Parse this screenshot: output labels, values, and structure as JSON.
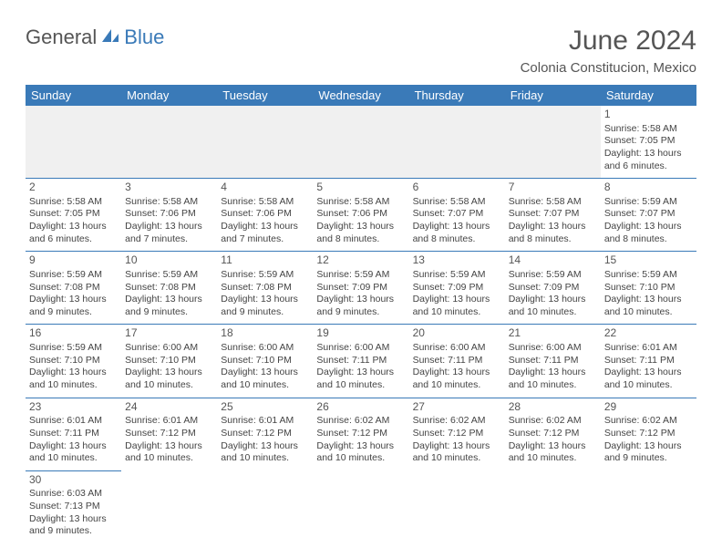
{
  "logo": {
    "general": "General",
    "blue": "Blue"
  },
  "title": "June 2024",
  "location": "Colonia Constitucion, Mexico",
  "weekdays": [
    "Sunday",
    "Monday",
    "Tuesday",
    "Wednesday",
    "Thursday",
    "Friday",
    "Saturday"
  ],
  "colors": {
    "header_bg": "#3a7ab8",
    "header_text": "#ffffff",
    "border": "#3a7ab8",
    "empty_bg": "#f0f0f0",
    "text": "#444444"
  },
  "weeks": [
    [
      null,
      null,
      null,
      null,
      null,
      null,
      {
        "day": "1",
        "sunrise": "Sunrise: 5:58 AM",
        "sunset": "Sunset: 7:05 PM",
        "daylight1": "Daylight: 13 hours",
        "daylight2": "and 6 minutes."
      }
    ],
    [
      {
        "day": "2",
        "sunrise": "Sunrise: 5:58 AM",
        "sunset": "Sunset: 7:05 PM",
        "daylight1": "Daylight: 13 hours",
        "daylight2": "and 6 minutes."
      },
      {
        "day": "3",
        "sunrise": "Sunrise: 5:58 AM",
        "sunset": "Sunset: 7:06 PM",
        "daylight1": "Daylight: 13 hours",
        "daylight2": "and 7 minutes."
      },
      {
        "day": "4",
        "sunrise": "Sunrise: 5:58 AM",
        "sunset": "Sunset: 7:06 PM",
        "daylight1": "Daylight: 13 hours",
        "daylight2": "and 7 minutes."
      },
      {
        "day": "5",
        "sunrise": "Sunrise: 5:58 AM",
        "sunset": "Sunset: 7:06 PM",
        "daylight1": "Daylight: 13 hours",
        "daylight2": "and 8 minutes."
      },
      {
        "day": "6",
        "sunrise": "Sunrise: 5:58 AM",
        "sunset": "Sunset: 7:07 PM",
        "daylight1": "Daylight: 13 hours",
        "daylight2": "and 8 minutes."
      },
      {
        "day": "7",
        "sunrise": "Sunrise: 5:58 AM",
        "sunset": "Sunset: 7:07 PM",
        "daylight1": "Daylight: 13 hours",
        "daylight2": "and 8 minutes."
      },
      {
        "day": "8",
        "sunrise": "Sunrise: 5:59 AM",
        "sunset": "Sunset: 7:07 PM",
        "daylight1": "Daylight: 13 hours",
        "daylight2": "and 8 minutes."
      }
    ],
    [
      {
        "day": "9",
        "sunrise": "Sunrise: 5:59 AM",
        "sunset": "Sunset: 7:08 PM",
        "daylight1": "Daylight: 13 hours",
        "daylight2": "and 9 minutes."
      },
      {
        "day": "10",
        "sunrise": "Sunrise: 5:59 AM",
        "sunset": "Sunset: 7:08 PM",
        "daylight1": "Daylight: 13 hours",
        "daylight2": "and 9 minutes."
      },
      {
        "day": "11",
        "sunrise": "Sunrise: 5:59 AM",
        "sunset": "Sunset: 7:08 PM",
        "daylight1": "Daylight: 13 hours",
        "daylight2": "and 9 minutes."
      },
      {
        "day": "12",
        "sunrise": "Sunrise: 5:59 AM",
        "sunset": "Sunset: 7:09 PM",
        "daylight1": "Daylight: 13 hours",
        "daylight2": "and 9 minutes."
      },
      {
        "day": "13",
        "sunrise": "Sunrise: 5:59 AM",
        "sunset": "Sunset: 7:09 PM",
        "daylight1": "Daylight: 13 hours",
        "daylight2": "and 10 minutes."
      },
      {
        "day": "14",
        "sunrise": "Sunrise: 5:59 AM",
        "sunset": "Sunset: 7:09 PM",
        "daylight1": "Daylight: 13 hours",
        "daylight2": "and 10 minutes."
      },
      {
        "day": "15",
        "sunrise": "Sunrise: 5:59 AM",
        "sunset": "Sunset: 7:10 PM",
        "daylight1": "Daylight: 13 hours",
        "daylight2": "and 10 minutes."
      }
    ],
    [
      {
        "day": "16",
        "sunrise": "Sunrise: 5:59 AM",
        "sunset": "Sunset: 7:10 PM",
        "daylight1": "Daylight: 13 hours",
        "daylight2": "and 10 minutes."
      },
      {
        "day": "17",
        "sunrise": "Sunrise: 6:00 AM",
        "sunset": "Sunset: 7:10 PM",
        "daylight1": "Daylight: 13 hours",
        "daylight2": "and 10 minutes."
      },
      {
        "day": "18",
        "sunrise": "Sunrise: 6:00 AM",
        "sunset": "Sunset: 7:10 PM",
        "daylight1": "Daylight: 13 hours",
        "daylight2": "and 10 minutes."
      },
      {
        "day": "19",
        "sunrise": "Sunrise: 6:00 AM",
        "sunset": "Sunset: 7:11 PM",
        "daylight1": "Daylight: 13 hours",
        "daylight2": "and 10 minutes."
      },
      {
        "day": "20",
        "sunrise": "Sunrise: 6:00 AM",
        "sunset": "Sunset: 7:11 PM",
        "daylight1": "Daylight: 13 hours",
        "daylight2": "and 10 minutes."
      },
      {
        "day": "21",
        "sunrise": "Sunrise: 6:00 AM",
        "sunset": "Sunset: 7:11 PM",
        "daylight1": "Daylight: 13 hours",
        "daylight2": "and 10 minutes."
      },
      {
        "day": "22",
        "sunrise": "Sunrise: 6:01 AM",
        "sunset": "Sunset: 7:11 PM",
        "daylight1": "Daylight: 13 hours",
        "daylight2": "and 10 minutes."
      }
    ],
    [
      {
        "day": "23",
        "sunrise": "Sunrise: 6:01 AM",
        "sunset": "Sunset: 7:11 PM",
        "daylight1": "Daylight: 13 hours",
        "daylight2": "and 10 minutes."
      },
      {
        "day": "24",
        "sunrise": "Sunrise: 6:01 AM",
        "sunset": "Sunset: 7:12 PM",
        "daylight1": "Daylight: 13 hours",
        "daylight2": "and 10 minutes."
      },
      {
        "day": "25",
        "sunrise": "Sunrise: 6:01 AM",
        "sunset": "Sunset: 7:12 PM",
        "daylight1": "Daylight: 13 hours",
        "daylight2": "and 10 minutes."
      },
      {
        "day": "26",
        "sunrise": "Sunrise: 6:02 AM",
        "sunset": "Sunset: 7:12 PM",
        "daylight1": "Daylight: 13 hours",
        "daylight2": "and 10 minutes."
      },
      {
        "day": "27",
        "sunrise": "Sunrise: 6:02 AM",
        "sunset": "Sunset: 7:12 PM",
        "daylight1": "Daylight: 13 hours",
        "daylight2": "and 10 minutes."
      },
      {
        "day": "28",
        "sunrise": "Sunrise: 6:02 AM",
        "sunset": "Sunset: 7:12 PM",
        "daylight1": "Daylight: 13 hours",
        "daylight2": "and 10 minutes."
      },
      {
        "day": "29",
        "sunrise": "Sunrise: 6:02 AM",
        "sunset": "Sunset: 7:12 PM",
        "daylight1": "Daylight: 13 hours",
        "daylight2": "and 9 minutes."
      }
    ],
    [
      {
        "day": "30",
        "sunrise": "Sunrise: 6:03 AM",
        "sunset": "Sunset: 7:13 PM",
        "daylight1": "Daylight: 13 hours",
        "daylight2": "and 9 minutes."
      },
      null,
      null,
      null,
      null,
      null,
      null
    ]
  ]
}
